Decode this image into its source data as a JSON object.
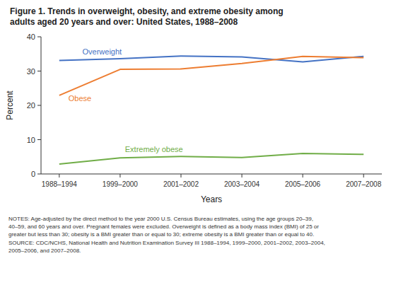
{
  "chart_data": {
    "type": "line",
    "title": "Figure 1. Trends in overweight, obesity, and extreme obesity among\nadults aged 20 years and over: United States, 1988–2008",
    "categories": [
      "1988–1994",
      "1999–2000",
      "2001–2002",
      "2003–2004",
      "2005–2006",
      "2007–2008"
    ],
    "series": [
      {
        "name": "Overweight",
        "color": "#4472C4",
        "values": [
          33.1,
          33.6,
          34.4,
          34.1,
          32.7,
          34.3
        ]
      },
      {
        "name": "Obese",
        "color": "#ED7D31",
        "values": [
          22.9,
          30.5,
          30.6,
          32.2,
          34.3,
          33.9
        ]
      },
      {
        "name": "Extremely obese",
        "color": "#70AD47",
        "values": [
          2.9,
          4.7,
          5.1,
          4.8,
          6.0,
          5.7
        ]
      }
    ],
    "ylabel": "Percent",
    "xlabel": "Years",
    "ylim": [
      0,
      40
    ],
    "yticks": [
      0,
      10,
      20,
      30,
      40
    ],
    "grid": false,
    "notes": "NOTES: Age-adjusted by the direct method to the year 2000 U.S. Census Bureau estimates, using the age groups 20–39,\n40–59, and 60 years and over. Pregnant females were excluded. Overweight is defined as a body mass index (BMI) of 25 or\ngreater but less than 30; obesity is a BMI greater than or equal to 30; extreme obesity is a BMI greater than or equal to 40.\nSOURCE: CDC/NCHS, National Health and Nutrition Examination Survey III 1988–1994, 1999–2000, 2001–2002, 2003–2004,\n2005–2006, and 2007–2008."
  }
}
